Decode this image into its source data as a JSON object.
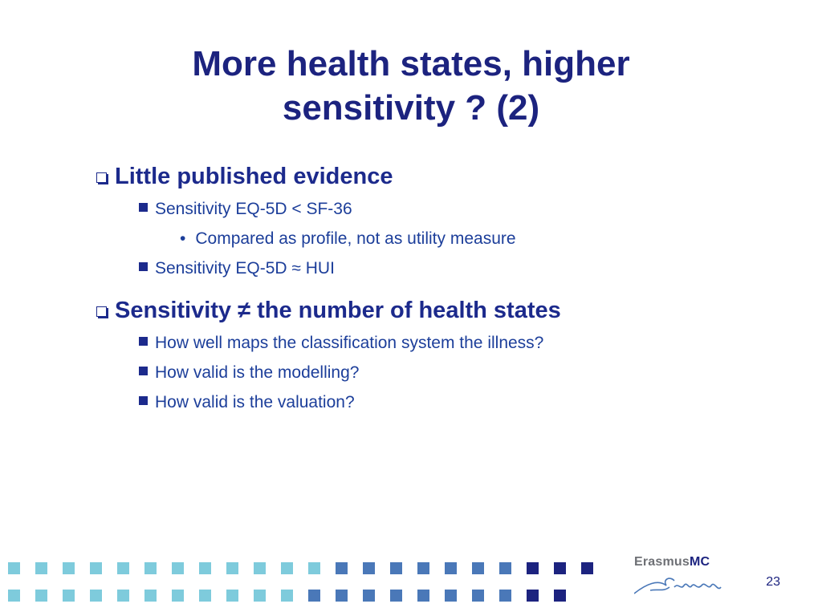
{
  "slide": {
    "title_line1": "More health states, higher",
    "title_line2": "sensitivity ? (2)",
    "page_number": "23"
  },
  "bullets": {
    "b1": "Little published evidence",
    "b1_1": "Sensitivity EQ-5D < SF-36",
    "b1_1_1": "Compared as profile, not as utility measure",
    "b1_2": "Sensitivity EQ-5D ≈ HUI",
    "b2": "Sensitivity ≠ the number of health states",
    "b2_1": "How well maps the classification system the illness?",
    "b2_2": "How valid is the modelling?",
    "b2_3": "How valid is the valuation?"
  },
  "logo": {
    "name_part1": "Erasmus",
    "name_part2": "MC",
    "signature": "Erasmus"
  },
  "colors": {
    "title": "#1c237f",
    "light_square": "#7ecbdc",
    "mid_square": "#4a78b8",
    "dark_square": "#1c237f"
  }
}
